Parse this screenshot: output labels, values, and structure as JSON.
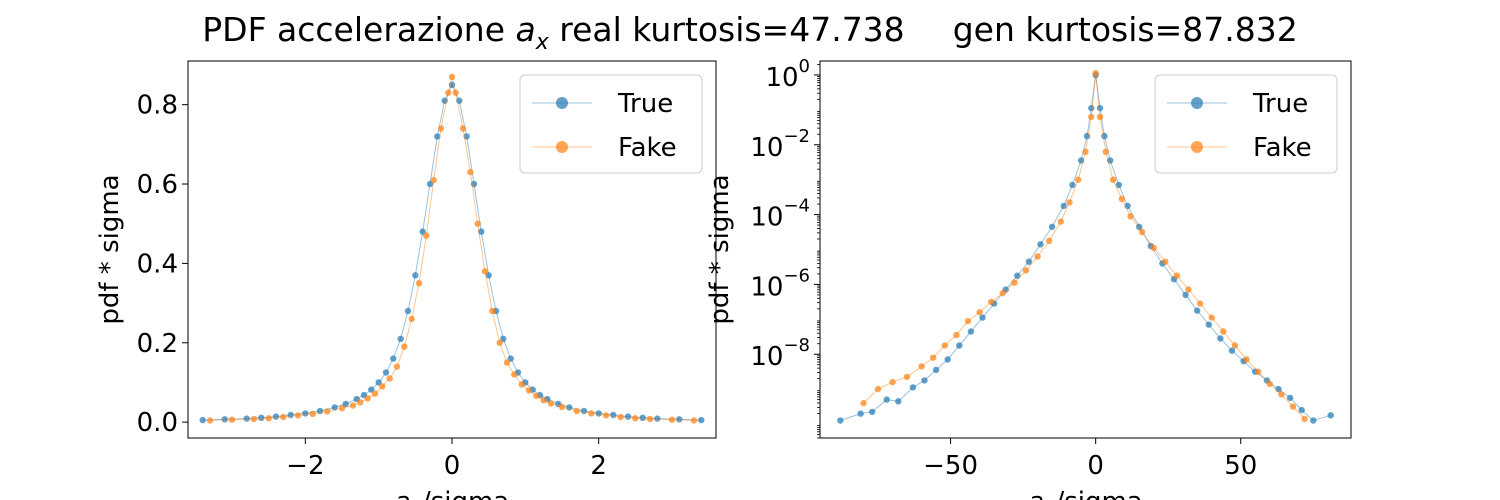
{
  "figure": {
    "title_prefix": "PDF accelerazione ",
    "title_var": "a",
    "title_sub": "x",
    "title_real": " real kurtosis=47.738",
    "title_gen": "gen kurtosis=87.832"
  },
  "colors": {
    "true": "#1f77b4",
    "fake": "#ff7f0e"
  },
  "chart_data": [
    {
      "type": "line",
      "scale": "linear",
      "xlabel": "a_x/sigma",
      "ylabel": "pdf * sigma",
      "xlim": [
        -3.6,
        3.6
      ],
      "ylim": [
        -0.04,
        0.91
      ],
      "xticks": [
        -2,
        0,
        2
      ],
      "xtick_labels": [
        "−2",
        "0",
        "2"
      ],
      "yticks": [
        0.0,
        0.2,
        0.4,
        0.6,
        0.8
      ],
      "ytick_labels": [
        "0.0",
        "0.2",
        "0.4",
        "0.6",
        "0.8"
      ],
      "grid": false,
      "legend": "top-right",
      "series": [
        {
          "name": "True",
          "x": [
            -3.4,
            -3.1,
            -2.8,
            -2.6,
            -2.4,
            -2.2,
            -2.0,
            -1.8,
            -1.6,
            -1.45,
            -1.3,
            -1.2,
            -1.1,
            -1.0,
            -0.9,
            -0.8,
            -0.7,
            -0.6,
            -0.5,
            -0.4,
            -0.3,
            -0.2,
            -0.1,
            0.0,
            0.1,
            0.2,
            0.3,
            0.4,
            0.5,
            0.6,
            0.7,
            0.8,
            0.9,
            1.0,
            1.1,
            1.2,
            1.3,
            1.45,
            1.6,
            1.8,
            2.0,
            2.2,
            2.4,
            2.6,
            2.8,
            3.1,
            3.4
          ],
          "y": [
            0.005,
            0.007,
            0.009,
            0.011,
            0.014,
            0.018,
            0.022,
            0.028,
            0.037,
            0.046,
            0.058,
            0.068,
            0.082,
            0.1,
            0.125,
            0.16,
            0.21,
            0.28,
            0.37,
            0.48,
            0.6,
            0.72,
            0.81,
            0.85,
            0.81,
            0.72,
            0.6,
            0.48,
            0.37,
            0.28,
            0.21,
            0.16,
            0.125,
            0.1,
            0.082,
            0.068,
            0.058,
            0.046,
            0.037,
            0.028,
            0.022,
            0.018,
            0.014,
            0.011,
            0.009,
            0.007,
            0.005
          ]
        },
        {
          "name": "Fake",
          "x": [
            -3.3,
            -3.0,
            -2.7,
            -2.5,
            -2.3,
            -2.1,
            -1.9,
            -1.7,
            -1.5,
            -1.35,
            -1.25,
            -1.15,
            -1.05,
            -0.95,
            -0.85,
            -0.75,
            -0.65,
            -0.55,
            -0.45,
            -0.35,
            -0.25,
            -0.15,
            -0.05,
            0.0,
            0.05,
            0.15,
            0.25,
            0.35,
            0.45,
            0.55,
            0.65,
            0.75,
            0.85,
            0.95,
            1.05,
            1.15,
            1.25,
            1.35,
            1.5,
            1.7,
            1.9,
            2.1,
            2.3,
            2.5,
            2.7,
            3.0,
            3.3
          ],
          "y": [
            0.004,
            0.006,
            0.008,
            0.01,
            0.013,
            0.017,
            0.021,
            0.027,
            0.035,
            0.042,
            0.05,
            0.06,
            0.072,
            0.09,
            0.11,
            0.14,
            0.19,
            0.26,
            0.35,
            0.47,
            0.61,
            0.74,
            0.83,
            0.87,
            0.83,
            0.74,
            0.63,
            0.5,
            0.38,
            0.28,
            0.2,
            0.15,
            0.12,
            0.095,
            0.08,
            0.066,
            0.055,
            0.047,
            0.038,
            0.028,
            0.022,
            0.017,
            0.013,
            0.01,
            0.008,
            0.006,
            0.004
          ]
        }
      ]
    },
    {
      "type": "line",
      "scale": "log",
      "xlabel": "a_x/sigma",
      "ylabel": "pdf * sigma",
      "xlim": [
        -95,
        88
      ],
      "ylim_log10": [
        -10.4,
        0.4
      ],
      "xticks": [
        -50,
        0,
        50
      ],
      "xtick_labels": [
        "−50",
        "0",
        "50"
      ],
      "yticks_log10": [
        0,
        -2,
        -4,
        -6,
        -8
      ],
      "ytick_bases": [
        "10",
        "10",
        "10",
        "10",
        "10"
      ],
      "ytick_exponents": [
        "0",
        "−2",
        "−4",
        "−6",
        "−8"
      ],
      "grid": false,
      "legend": "top-right",
      "series": [
        {
          "name": "True",
          "x": [
            -88,
            -81,
            -77,
            -72,
            -68,
            -63,
            -59,
            -55,
            -51,
            -47,
            -43,
            -39,
            -35,
            -31,
            -27,
            -23,
            -19,
            -15,
            -11,
            -8,
            -5,
            -3,
            -1.5,
            0,
            1.5,
            3,
            5,
            8,
            11,
            15,
            19,
            23,
            27,
            31,
            35,
            39,
            43,
            47,
            51,
            55,
            59,
            63,
            67,
            71,
            75,
            81
          ],
          "y_log10": [
            -9.9,
            -9.7,
            -9.65,
            -9.3,
            -9.35,
            -8.95,
            -8.75,
            -8.45,
            -8.15,
            -7.75,
            -7.35,
            -6.95,
            -6.55,
            -6.15,
            -5.75,
            -5.35,
            -4.85,
            -4.35,
            -3.75,
            -3.15,
            -2.45,
            -1.75,
            -0.95,
            0.0,
            -0.95,
            -1.75,
            -2.45,
            -3.15,
            -3.75,
            -4.35,
            -4.9,
            -5.4,
            -5.85,
            -6.3,
            -6.75,
            -7.15,
            -7.55,
            -7.9,
            -8.2,
            -8.5,
            -8.75,
            -9.0,
            -9.25,
            -9.6,
            -9.9,
            -9.75
          ]
        },
        {
          "name": "Fake",
          "x": [
            -80,
            -75,
            -70,
            -65,
            -60,
            -56,
            -52,
            -48,
            -44,
            -40,
            -36,
            -32,
            -28,
            -24,
            -20,
            -16,
            -12,
            -9,
            -6,
            -3.5,
            -1.5,
            0,
            1.5,
            3.5,
            6,
            9,
            12,
            16,
            20,
            24,
            28,
            32,
            36,
            40,
            44,
            48,
            52,
            56,
            60,
            64,
            68,
            72
          ],
          "y_log10": [
            -9.4,
            -9.0,
            -8.8,
            -8.65,
            -8.35,
            -8.1,
            -7.75,
            -7.45,
            -7.05,
            -6.8,
            -6.5,
            -6.25,
            -5.95,
            -5.6,
            -5.2,
            -4.75,
            -4.2,
            -3.65,
            -3.0,
            -2.2,
            -1.2,
            0.05,
            -1.2,
            -2.2,
            -3.0,
            -3.55,
            -4.05,
            -4.5,
            -4.95,
            -5.35,
            -5.75,
            -6.15,
            -6.55,
            -6.95,
            -7.35,
            -7.75,
            -8.15,
            -8.5,
            -8.85,
            -9.15,
            -9.5,
            -9.85
          ]
        }
      ]
    }
  ]
}
